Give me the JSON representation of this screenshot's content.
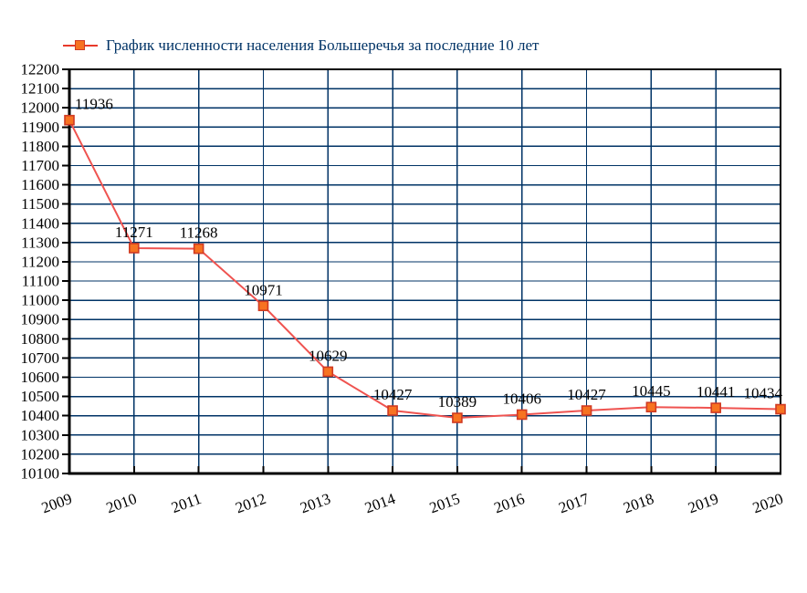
{
  "chart_data": {
    "type": "line",
    "title": "График численности населения Большеречья за последние 10 лет",
    "categories": [
      "2009",
      "2010",
      "2011",
      "2012",
      "2013",
      "2014",
      "2015",
      "2016",
      "2017",
      "2018",
      "2019",
      "2020"
    ],
    "series": [
      {
        "name": "График численности населения Большеречья за последние 10 лет",
        "values": [
          11936,
          11271,
          11268,
          10971,
          10629,
          10427,
          10389,
          10406,
          10427,
          10445,
          10441,
          10434
        ]
      }
    ],
    "xlabel": "",
    "ylabel": "",
    "ylim": [
      10100,
      12200
    ],
    "ytick_step": 100,
    "grid": true,
    "legend_position": "top-left",
    "marker_shape": "square",
    "colors": {
      "line": "#ef5350",
      "legend_line": "#e8392a",
      "marker_fill": "#f77321",
      "marker_border": "#d03a22",
      "gridline": "#003366",
      "axis": "#000000",
      "legend_text": "#003366",
      "label_text": "#000000",
      "background": "#ffffff"
    }
  }
}
